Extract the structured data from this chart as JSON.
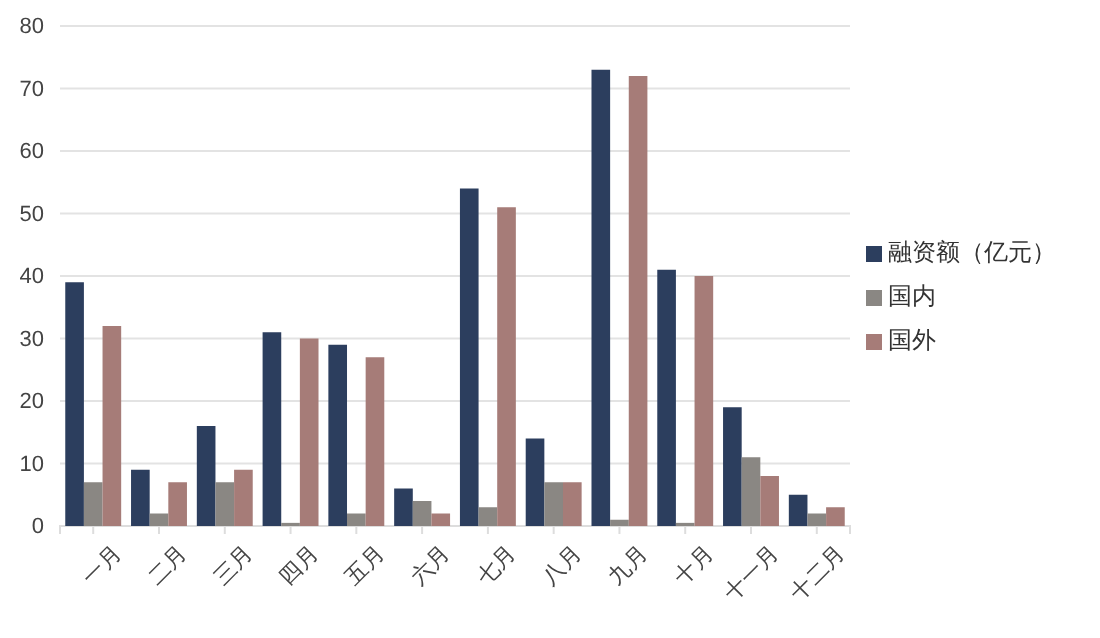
{
  "chart_data": {
    "type": "bar",
    "categories": [
      "一月",
      "二月",
      "三月",
      "四月",
      "五月",
      "六月",
      "七月",
      "八月",
      "九月",
      "十月",
      "十一月",
      "十二月"
    ],
    "series": [
      {
        "name": "融资额（亿元）",
        "color": "#2c3e5e",
        "values": [
          39,
          9,
          16,
          31,
          29,
          6,
          54,
          14,
          73,
          41,
          19,
          5
        ]
      },
      {
        "name": "国内",
        "color": "#8a8783",
        "values": [
          7,
          2,
          7,
          0.5,
          2,
          4,
          3,
          7,
          1,
          0.5,
          11,
          2
        ]
      },
      {
        "name": "国外",
        "color": "#a67c78",
        "values": [
          32,
          7,
          9,
          30,
          27,
          2,
          51,
          7,
          72,
          40,
          8,
          3
        ]
      }
    ],
    "ylim": [
      0,
      80
    ],
    "yticks": [
      0,
      10,
      20,
      30,
      40,
      50,
      60,
      70,
      80
    ],
    "grid": "y",
    "legend": "right"
  }
}
